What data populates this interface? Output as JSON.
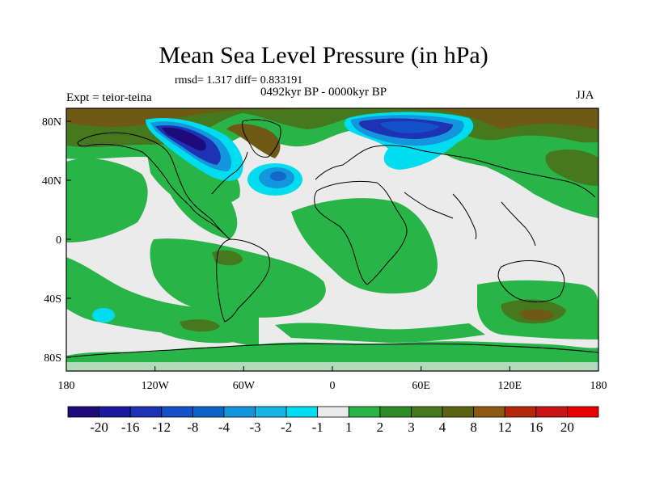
{
  "title": "Mean Sea Level Pressure (in hPa)",
  "stats": "rmsd= 1.317  diff= 0.833191",
  "period": "0492kyr BP - 0000kyr BP",
  "experiment": "Expt = teior-teina",
  "season": "JJA",
  "lat_labels": [
    "80N",
    "40N",
    "0",
    "40S",
    "80S"
  ],
  "lon_labels": [
    "180",
    "120W",
    "60W",
    "0",
    "60E",
    "120E",
    "180"
  ],
  "colorbar": {
    "labels": [
      "-20",
      "-16",
      "-12",
      "-8",
      "-4",
      "-3",
      "-2",
      "-1",
      "1",
      "2",
      "3",
      "4",
      "8",
      "12",
      "16",
      "20"
    ],
    "colors": [
      "#1e0a78",
      "#1a1aa0",
      "#1e32b4",
      "#1450c8",
      "#0a64c8",
      "#1496dc",
      "#14b4e6",
      "#00dcf0",
      "#ebebeb",
      "#28b446",
      "#2d8c28",
      "#46781e",
      "#5a6414",
      "#8c5a14",
      "#b4280a",
      "#c81414",
      "#e60000"
    ]
  },
  "colors": {
    "ocean_neutral": "#ebebeb",
    "green_light": "#28b446",
    "green_dark": "#2d8c28",
    "olive": "#46781e",
    "brown": "#6e5a14",
    "blue_dark": "#1e32b4",
    "blue_mid": "#1466c8",
    "cyan": "#00dcf0",
    "coast": "#000000"
  }
}
